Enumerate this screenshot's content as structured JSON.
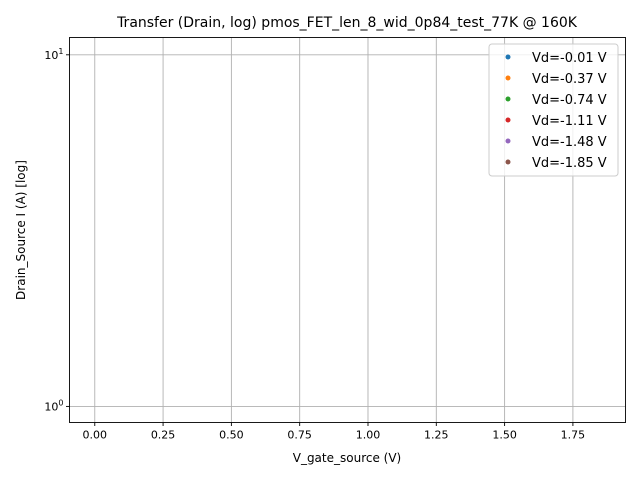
{
  "chart_data": {
    "type": "scatter",
    "title": "Transfer (Drain, log) pmos_FET_len_8_wid_0p84_test_77K @ 160K",
    "xlabel": "V_gate_source (V)",
    "ylabel": "Drain_Source I (A) [log]",
    "xlim": [
      -0.0925,
      1.9425
    ],
    "ylim": [
      0.9,
      11.2
    ],
    "yscale": "log",
    "grid": true,
    "legend_position": "top-right",
    "x_ticks": [
      {
        "value": 0.0,
        "label": "0.00"
      },
      {
        "value": 0.25,
        "label": "0.25"
      },
      {
        "value": 0.5,
        "label": "0.50"
      },
      {
        "value": 0.75,
        "label": "0.75"
      },
      {
        "value": 1.0,
        "label": "1.00"
      },
      {
        "value": 1.25,
        "label": "1.25"
      },
      {
        "value": 1.5,
        "label": "1.50"
      },
      {
        "value": 1.75,
        "label": "1.75"
      }
    ],
    "y_ticks": [
      {
        "value": 1,
        "label": "10⁰",
        "base": "10",
        "exp": "0"
      },
      {
        "value": 10,
        "label": "10¹",
        "base": "10",
        "exp": "1"
      }
    ],
    "series": [
      {
        "name": "Vd=-0.01 V",
        "color": "#1f77b4",
        "points": []
      },
      {
        "name": "Vd=-0.37 V",
        "color": "#ff7f0e",
        "points": []
      },
      {
        "name": "Vd=-0.74 V",
        "color": "#2ca02c",
        "points": []
      },
      {
        "name": "Vd=-1.11 V",
        "color": "#d62728",
        "points": []
      },
      {
        "name": "Vd=-1.48 V",
        "color": "#9467bd",
        "points": []
      },
      {
        "name": "Vd=-1.85 V",
        "color": "#8c564b",
        "points": []
      }
    ]
  }
}
